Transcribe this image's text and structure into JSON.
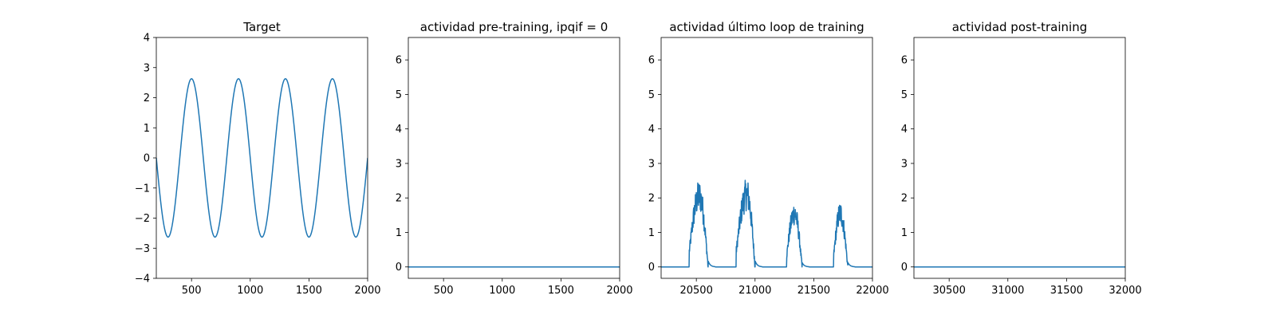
{
  "figure": {
    "line_color": "#1f77b4",
    "background": "#ffffff"
  },
  "chart_data": [
    {
      "type": "line",
      "title": "Target",
      "xlabel": "",
      "ylabel": "",
      "xlim": [
        200,
        2000
      ],
      "ylim": [
        -4,
        4
      ],
      "xticks": [
        500,
        1000,
        1500,
        2000
      ],
      "yticks": [
        -4,
        -3,
        -2,
        -1,
        0,
        1,
        2,
        3,
        4
      ],
      "grid": false,
      "function": {
        "kind": "sine",
        "amplitude": 2.63,
        "period": 400,
        "peak_x": 500,
        "x_start": 200,
        "x_end": 2000
      }
    },
    {
      "type": "line",
      "title": "actividad pre-training, ipqif = 0",
      "xlabel": "",
      "ylabel": "",
      "xlim": [
        200,
        2000
      ],
      "ylim": [
        -0.33,
        6.65
      ],
      "xticks": [
        500,
        1000,
        1500,
        2000
      ],
      "yticks": [
        0,
        1,
        2,
        3,
        4,
        5,
        6
      ],
      "grid": false,
      "series": [
        {
          "x": [
            200,
            2000
          ],
          "y": [
            0,
            0
          ]
        }
      ]
    },
    {
      "type": "line",
      "title": "actividad último loop de training",
      "xlabel": "",
      "ylabel": "",
      "xlim": [
        20200,
        22000
      ],
      "ylim": [
        -0.33,
        6.65
      ],
      "xticks": [
        20500,
        21000,
        21500,
        22000
      ],
      "yticks": [
        0,
        1,
        2,
        3,
        4,
        5,
        6
      ],
      "grid": false,
      "bursts": [
        {
          "start": 20440,
          "peak_x": 20525,
          "peak": 2.05,
          "end": 20600
        },
        {
          "start": 20840,
          "peak_x": 20930,
          "peak": 2.1,
          "end": 21000
        },
        {
          "start": 21270,
          "peak_x": 21335,
          "peak": 1.55,
          "end": 21400
        },
        {
          "start": 21670,
          "peak_x": 21725,
          "peak": 1.55,
          "end": 21790
        }
      ]
    },
    {
      "type": "line",
      "title": "actividad post-training",
      "xlabel": "",
      "ylabel": "",
      "xlim": [
        30200,
        32000
      ],
      "ylim": [
        -0.33,
        6.65
      ],
      "xticks": [
        30500,
        31000,
        31500,
        32000
      ],
      "yticks": [
        0,
        1,
        2,
        3,
        4,
        5,
        6
      ],
      "grid": false,
      "series": [
        {
          "x": [
            30200,
            32000
          ],
          "y": [
            0,
            0
          ]
        }
      ]
    }
  ]
}
